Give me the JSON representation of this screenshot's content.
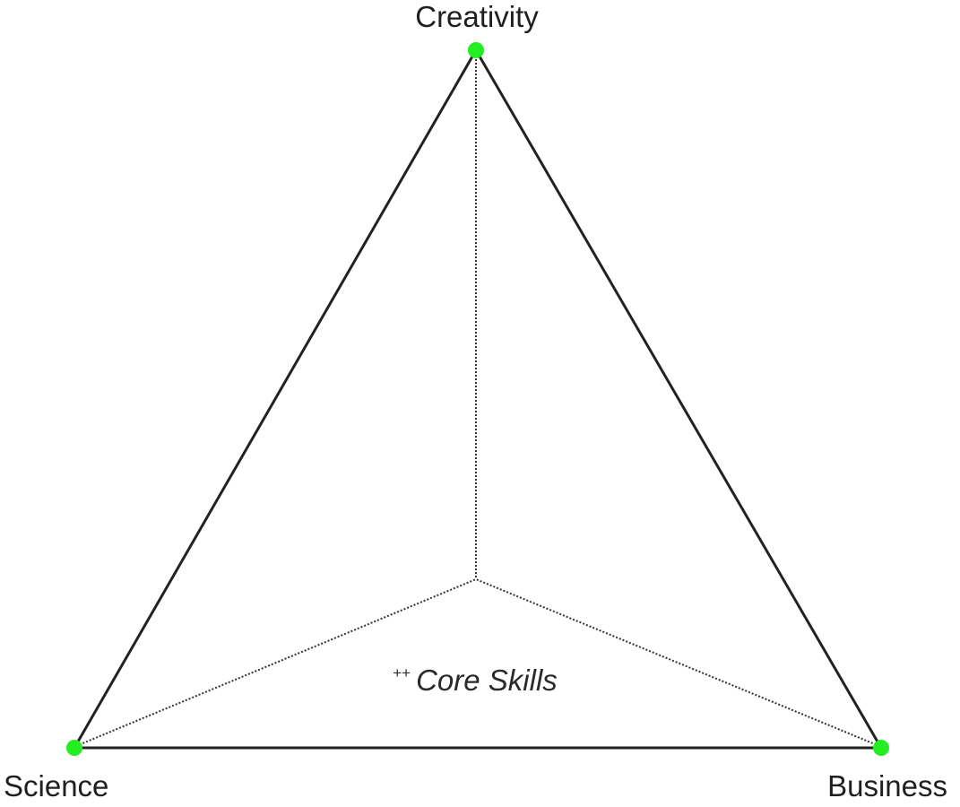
{
  "labels": {
    "top": "Creativity",
    "left": "Science",
    "right": "Business"
  },
  "center": {
    "prefix": "++",
    "text": "Core Skills"
  },
  "colors": {
    "line": "#222222",
    "dotted_line": "#333333",
    "vertex_dot": "#22ee22"
  }
}
